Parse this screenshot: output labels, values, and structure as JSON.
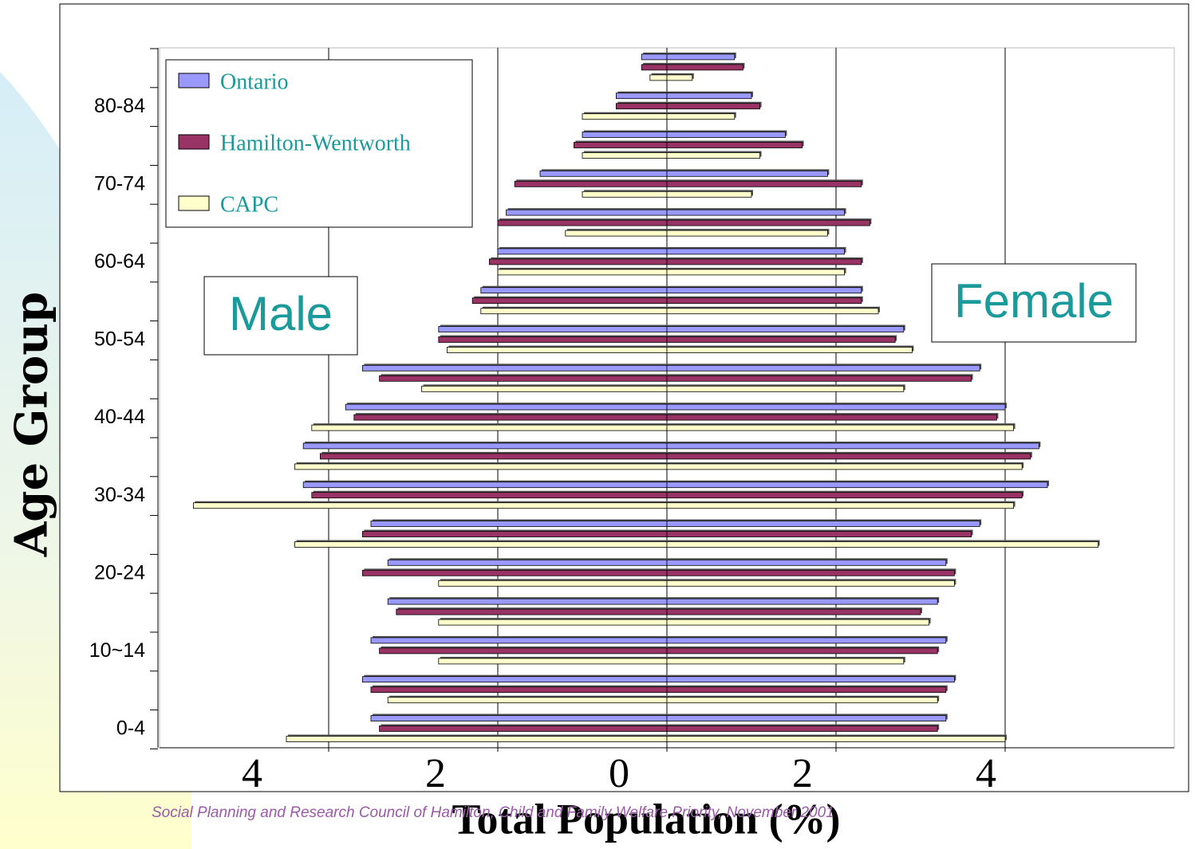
{
  "chart_data": {
    "type": "pyramid",
    "xlabel": "Total Population (%)",
    "ylabel": "Age Group",
    "side_labels": [
      "Male",
      "Female"
    ],
    "footer": "Social Planning and Research Council of Hamilton, Child and Family Welfare Priority, November 2001",
    "categories": [
      "0-4",
      null,
      "10~14",
      null,
      "20-24",
      null,
      "30-34",
      null,
      "40-44",
      null,
      "50-54",
      null,
      "60-64",
      null,
      "70-74",
      null,
      "80-84",
      null
    ],
    "series": [
      {
        "name": "Ontario",
        "color": "#9999ff",
        "male": [
          -3.5,
          -3.6,
          -3.5,
          -3.3,
          -3.3,
          -3.5,
          -4.3,
          -4.3,
          -3.8,
          -3.6,
          -2.7,
          -2.2,
          -2.0,
          -1.9,
          -1.5,
          -1.0,
          -0.6,
          -0.3
        ],
        "female": [
          3.3,
          3.4,
          3.3,
          3.2,
          3.3,
          3.7,
          4.5,
          4.4,
          4.0,
          3.7,
          2.8,
          2.3,
          2.1,
          2.1,
          1.9,
          1.4,
          1.0,
          0.8
        ]
      },
      {
        "name": "Hamilton-Wentworth",
        "color": "#993366",
        "male": [
          -3.4,
          -3.5,
          -3.4,
          -3.2,
          -3.6,
          -3.6,
          -4.2,
          -4.1,
          -3.7,
          -3.4,
          -2.7,
          -2.3,
          -2.1,
          -2.0,
          -1.8,
          -1.1,
          -0.6,
          -0.3
        ],
        "female": [
          3.2,
          3.3,
          3.2,
          3.0,
          3.4,
          3.6,
          4.2,
          4.3,
          3.9,
          3.6,
          2.7,
          2.3,
          2.3,
          2.4,
          2.3,
          1.6,
          1.1,
          0.9
        ]
      },
      {
        "name": "CAPC",
        "color": "#ffffcc",
        "male": [
          -4.5,
          -3.3,
          -2.7,
          -2.7,
          -2.7,
          -4.4,
          -5.6,
          -4.4,
          -4.2,
          -2.9,
          -2.6,
          -2.2,
          -2.0,
          -1.2,
          -1.0,
          -1.0,
          -1.0,
          -0.2
        ],
        "female": [
          4.0,
          3.2,
          2.8,
          3.1,
          3.4,
          5.1,
          4.1,
          4.2,
          4.1,
          2.8,
          2.9,
          2.5,
          2.1,
          1.9,
          1.0,
          1.1,
          0.8,
          0.3
        ]
      }
    ],
    "xlim": [
      -6,
      6
    ],
    "xticks": [
      {
        "value": -4,
        "label": "4"
      },
      {
        "value": -2,
        "label": "2"
      },
      0,
      2,
      4
    ],
    "grid": true
  }
}
